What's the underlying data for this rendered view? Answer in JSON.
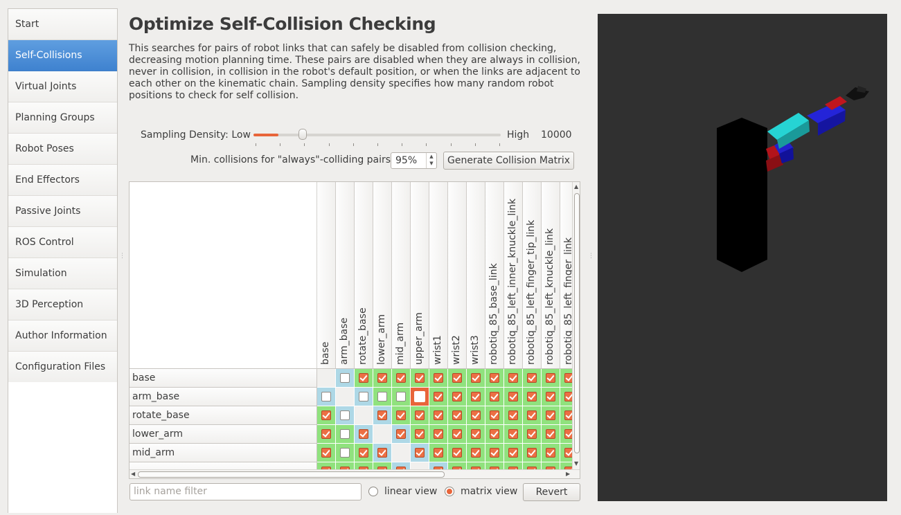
{
  "sidebar": {
    "items": [
      {
        "label": "Start"
      },
      {
        "label": "Self-Collisions"
      },
      {
        "label": "Virtual Joints"
      },
      {
        "label": "Planning Groups"
      },
      {
        "label": "Robot Poses"
      },
      {
        "label": "End Effectors"
      },
      {
        "label": "Passive Joints"
      },
      {
        "label": "ROS Control"
      },
      {
        "label": "Simulation"
      },
      {
        "label": "3D Perception"
      },
      {
        "label": "Author Information"
      },
      {
        "label": "Configuration Files"
      }
    ],
    "active_index": 1
  },
  "main": {
    "title": "Optimize Self-Collision Checking",
    "description": "This searches for pairs of robot links that can safely be disabled from collision checking, decreasing motion planning time. These pairs are disabled when they are always in collision, never in collision, in collision in the robot's default position, or when the links are adjacent to each other on the kinematic chain. Sampling density specifies how many random robot positions to check for self collision.",
    "sampling": {
      "label": "Sampling Density: Low",
      "high_label": "High",
      "value": "10000",
      "slider_fraction": 0.1
    },
    "min_collisions": {
      "label": "Min. collisions for \"always\"-colliding pairs:",
      "value": "95%"
    },
    "generate_button": "Generate Collision Matrix",
    "matrix": {
      "columns": [
        "base",
        "arm_base",
        "rotate_base",
        "lower_arm",
        "mid_arm",
        "upper_arm",
        "wrist1",
        "wrist2",
        "wrist3",
        "robotiq_85_base_link",
        "robotiq_85_left_inner_knuckle_link",
        "robotiq_85_left_finger_tip_link",
        "robotiq_85_left_knuckle_link",
        "robotiq_85_left_finger_link"
      ],
      "rows": [
        "base",
        "arm_base",
        "rotate_base",
        "lower_arm",
        "mid_arm",
        ""
      ],
      "cells": [
        [
          "D",
          "BU",
          "GC",
          "GC",
          "GC",
          "GC",
          "GC",
          "GC",
          "GC",
          "GC",
          "GC",
          "GC",
          "GC",
          "GC"
        ],
        [
          "BU",
          "D",
          "BU",
          "GU",
          "GU",
          "FU",
          "GC",
          "GC",
          "GC",
          "GC",
          "GC",
          "GC",
          "GC",
          "GC"
        ],
        [
          "GC",
          "BU",
          "D",
          "BC",
          "GC",
          "GC",
          "GC",
          "GC",
          "GC",
          "GC",
          "GC",
          "GC",
          "GC",
          "GC"
        ],
        [
          "GC",
          "GU",
          "BC",
          "D",
          "BC",
          "GC",
          "GC",
          "GC",
          "GC",
          "GC",
          "GC",
          "GC",
          "GC",
          "GC"
        ],
        [
          "GC",
          "GU",
          "GC",
          "BC",
          "D",
          "BC",
          "GC",
          "GC",
          "GC",
          "GC",
          "GC",
          "GC",
          "GC",
          "GC"
        ],
        [
          "GC",
          "GC",
          "GC",
          "GC",
          "BC",
          "D",
          "BC",
          "GC",
          "GC",
          "GC",
          "GC",
          "GC",
          "GC",
          "GC"
        ]
      ],
      "colors": {
        "green": "#90e27e",
        "blue": "#aed8e6",
        "check": "#ec6f44"
      }
    },
    "filter_placeholder": "link name filter",
    "view_options": {
      "linear": "linear view",
      "matrix": "matrix view",
      "selected": "matrix"
    },
    "revert_button": "Revert"
  },
  "viewport": {
    "background": "#303030"
  }
}
